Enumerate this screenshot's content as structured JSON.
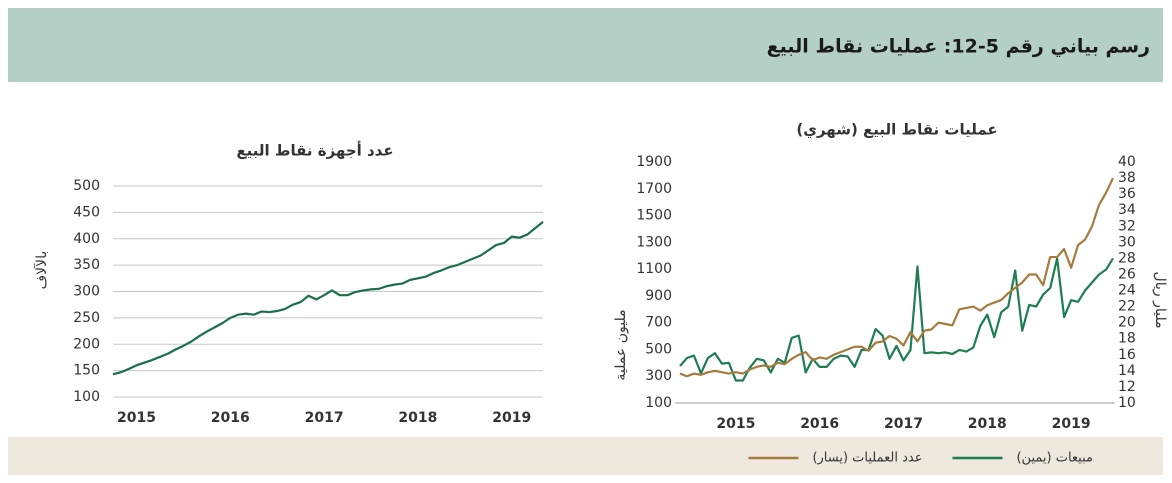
{
  "title": "رسم بياني رقم 5-12: عمليات نقاط البيع",
  "chart_data": [
    {
      "type": "line",
      "title": "عدد أجهزة نقاط البيع",
      "ylabel": "بالآلاف",
      "color": "#1b6f4a",
      "grid": true,
      "categories": [
        null,
        null,
        null,
        "2015",
        null,
        null,
        null,
        null,
        null,
        null,
        null,
        null,
        null,
        null,
        null,
        "2016",
        null,
        null,
        null,
        null,
        null,
        null,
        null,
        null,
        null,
        null,
        null,
        "2017",
        null,
        null,
        null,
        null,
        null,
        null,
        null,
        null,
        null,
        null,
        null,
        "2018",
        null,
        null,
        null,
        null,
        null,
        null,
        null,
        null,
        null,
        null,
        null,
        "2019",
        null,
        null,
        null,
        null
      ],
      "values": [
        143,
        147,
        153,
        160,
        165,
        170,
        176,
        182,
        190,
        197,
        205,
        215,
        224,
        232,
        240,
        250,
        256,
        258,
        256,
        262,
        261,
        263,
        267,
        275,
        280,
        292,
        285,
        293,
        302,
        293,
        293,
        299,
        302,
        304,
        305,
        310,
        313,
        315,
        322,
        325,
        328,
        335,
        340,
        346,
        350,
        356,
        362,
        368,
        378,
        388,
        392,
        404,
        402,
        408,
        420,
        432
      ],
      "ylim": [
        100,
        500
      ],
      "yticks": [
        100,
        150,
        200,
        250,
        300,
        350,
        400,
        450,
        500
      ]
    },
    {
      "type": "line",
      "title": "عمليات نقاط البيع (شهري)",
      "ylabel": "مليون عملية",
      "y2label": "مليار ريال",
      "grid": false,
      "legend": "bottom",
      "categories": [
        null,
        null,
        null,
        null,
        null,
        null,
        null,
        null,
        "2015",
        null,
        null,
        null,
        null,
        null,
        null,
        null,
        null,
        null,
        null,
        null,
        "2016",
        null,
        null,
        null,
        null,
        null,
        null,
        null,
        null,
        null,
        null,
        null,
        "2017",
        null,
        null,
        null,
        null,
        null,
        null,
        null,
        null,
        null,
        null,
        null,
        "2018",
        null,
        null,
        null,
        null,
        null,
        null,
        null,
        null,
        null,
        null,
        null,
        "2019",
        null,
        null,
        null,
        null,
        null,
        null
      ],
      "series": [
        {
          "name": "مبيعات (يمين)",
          "color": "#1f7d52",
          "axis": "y2",
          "values": [
            14.6,
            15.6,
            15.9,
            13.7,
            15.6,
            16.2,
            14.9,
            15,
            12.8,
            12.8,
            14.4,
            15.5,
            15.3,
            13.8,
            15.5,
            15,
            18.1,
            18.4,
            13.8,
            15.5,
            14.5,
            14.5,
            15.5,
            15.9,
            15.8,
            14.5,
            16.6,
            16.6,
            19.2,
            18.4,
            15.5,
            17.1,
            15.3,
            16.6,
            27,
            16.2,
            16.3,
            16.2,
            16.3,
            16.1,
            16.6,
            16.4,
            16.9,
            19.6,
            21,
            18.2,
            21.3,
            22,
            26.5,
            19,
            22.2,
            22,
            23.5,
            24.3,
            28,
            20.7,
            22.8,
            22.6,
            24,
            25,
            26,
            26.6,
            28
          ]
        },
        {
          "name": "عدد العمليات (يسار)",
          "color": "#a67c3e",
          "values": [
            320,
            300,
            320,
            310,
            330,
            340,
            330,
            320,
            330,
            320,
            350,
            370,
            380,
            370,
            400,
            390,
            430,
            460,
            480,
            420,
            440,
            430,
            460,
            480,
            500,
            520,
            520,
            490,
            550,
            560,
            600,
            580,
            530,
            630,
            560,
            640,
            650,
            700,
            690,
            680,
            800,
            810,
            820,
            790,
            830,
            850,
            870,
            920,
            960,
            1000,
            1060,
            1060,
            980,
            1190,
            1190,
            1250,
            1110,
            1280,
            1320,
            1420,
            1580,
            1670,
            1780
          ]
        }
      ],
      "ylim": [
        100,
        1900
      ],
      "yticks": [
        100,
        300,
        500,
        700,
        900,
        1100,
        1300,
        1500,
        1700,
        1900
      ],
      "y2lim": [
        10,
        40
      ],
      "y2ticks": [
        10,
        12,
        14,
        16,
        18,
        20,
        22,
        24,
        26,
        28,
        30,
        32,
        34,
        36,
        38,
        40
      ]
    }
  ]
}
